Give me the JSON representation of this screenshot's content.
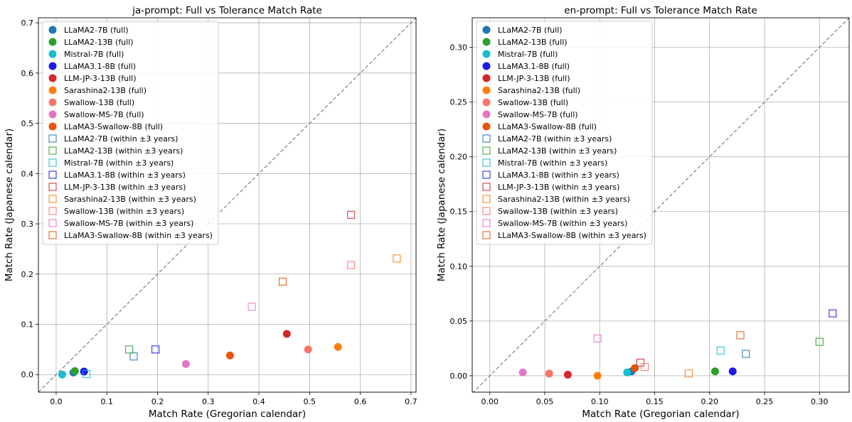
{
  "chart_data": [
    {
      "type": "scatter",
      "title": "ja-prompt: Full vs Tolerance Match Rate",
      "xlabel": "Match Rate (Gregorian calendar)",
      "ylabel": "Match Rate (Japanese calendar)",
      "xlim": [
        -0.035,
        0.71
      ],
      "ylim": [
        -0.035,
        0.71
      ],
      "xticks": [
        "0.0",
        "0.1",
        "0.2",
        "0.3",
        "0.4",
        "0.5",
        "0.6",
        "0.7"
      ],
      "yticks": [
        "0.0",
        "0.1",
        "0.2",
        "0.3",
        "0.4",
        "0.5",
        "0.6",
        "0.7"
      ],
      "grid": true,
      "diagonal": "y = x (dashed)",
      "legend_position": "upper-left",
      "series": [
        {
          "name": "LLaMA2-7B (full)",
          "marker": "circle",
          "color": "#1f77b4",
          "points": [
            [
              0.034,
              0.004
            ]
          ]
        },
        {
          "name": "LLaMA2-13B (full)",
          "marker": "circle",
          "color": "#2ca02c",
          "points": [
            [
              0.037,
              0.007
            ]
          ]
        },
        {
          "name": "Mistral-7B (full)",
          "marker": "circle",
          "color": "#17becf",
          "points": [
            [
              0.012,
              0.0
            ]
          ]
        },
        {
          "name": "LLaMA3.1-8B (full)",
          "marker": "circle",
          "color": "#1a1aeb",
          "points": [
            [
              0.055,
              0.006
            ]
          ]
        },
        {
          "name": "LLM-JP-3-13B (full)",
          "marker": "circle",
          "color": "#d62728",
          "points": [
            [
              0.455,
              0.081
            ]
          ]
        },
        {
          "name": "Sarashina2-13B (full)",
          "marker": "circle",
          "color": "#ff7f0e",
          "points": [
            [
              0.556,
              0.055
            ]
          ]
        },
        {
          "name": "Swallow-13B (full)",
          "marker": "circle",
          "color": "#f8766d",
          "points": [
            [
              0.497,
              0.05
            ]
          ]
        },
        {
          "name": "Swallow-MS-7B (full)",
          "marker": "circle",
          "color": "#e377c2",
          "points": [
            [
              0.256,
              0.021
            ]
          ]
        },
        {
          "name": "LLaMA3-Swallow-8B (full)",
          "marker": "circle",
          "color": "#e6550d",
          "points": [
            [
              0.343,
              0.038
            ]
          ]
        },
        {
          "name": "LLaMA2-7B (within ±3 years)",
          "marker": "square",
          "color": "#1f77b4",
          "points": [
            [
              0.153,
              0.036
            ]
          ]
        },
        {
          "name": "LLaMA2-13B (within ±3 years)",
          "marker": "square",
          "color": "#2ca02c",
          "points": [
            [
              0.144,
              0.05
            ]
          ]
        },
        {
          "name": "Mistral-7B (within ±3 years)",
          "marker": "square",
          "color": "#17becf",
          "points": [
            [
              0.06,
              0.001
            ]
          ]
        },
        {
          "name": "LLaMA3.1-8B (within ±3 years)",
          "marker": "square",
          "color": "#1a1aeb",
          "points": [
            [
              0.196,
              0.05
            ]
          ]
        },
        {
          "name": "LLM-JP-3-13B (within ±3 years)",
          "marker": "square",
          "color": "#d62728",
          "points": [
            [
              0.582,
              0.318
            ]
          ]
        },
        {
          "name": "Sarashina2-13B (within ±3 years)",
          "marker": "square",
          "color": "#ff7f0e",
          "points": [
            [
              0.672,
              0.231
            ]
          ]
        },
        {
          "name": "Swallow-13B (within ±3 years)",
          "marker": "square",
          "color": "#f8766d",
          "points": [
            [
              0.582,
              0.218
            ]
          ]
        },
        {
          "name": "Swallow-MS-7B (within ±3 years)",
          "marker": "square",
          "color": "#e377c2",
          "points": [
            [
              0.386,
              0.135
            ]
          ]
        },
        {
          "name": "LLaMA3-Swallow-8B (within ±3 years)",
          "marker": "square",
          "color": "#e6550d",
          "points": [
            [
              0.447,
              0.185
            ]
          ]
        }
      ]
    },
    {
      "type": "scatter",
      "title": "en-prompt: Full vs Tolerance Match Rate",
      "xlabel": "Match Rate (Gregorian calendar)",
      "ylabel": "Match Rate (Japanese calendar)",
      "xlim": [
        -0.016,
        0.327
      ],
      "ylim": [
        -0.015,
        0.327
      ],
      "xticks": [
        "0.00",
        "0.05",
        "0.10",
        "0.15",
        "0.20",
        "0.25",
        "0.30"
      ],
      "yticks": [
        "0.00",
        "0.05",
        "0.10",
        "0.15",
        "0.20",
        "0.25",
        "0.30"
      ],
      "grid": true,
      "diagonal": "y = x (dashed)",
      "legend_position": "upper-left",
      "series": [
        {
          "name": "LLaMA2-7B (full)",
          "marker": "circle",
          "color": "#1f77b4",
          "points": [
            [
              0.129,
              0.004
            ]
          ]
        },
        {
          "name": "LLaMA2-13B (full)",
          "marker": "circle",
          "color": "#2ca02c",
          "points": [
            [
              0.205,
              0.004
            ]
          ]
        },
        {
          "name": "Mistral-7B (full)",
          "marker": "circle",
          "color": "#17becf",
          "points": [
            [
              0.125,
              0.003
            ]
          ]
        },
        {
          "name": "LLaMA3.1-8B (full)",
          "marker": "circle",
          "color": "#1a1aeb",
          "points": [
            [
              0.221,
              0.004
            ]
          ]
        },
        {
          "name": "LLM-JP-3-13B (full)",
          "marker": "circle",
          "color": "#d62728",
          "points": [
            [
              0.071,
              0.001
            ]
          ]
        },
        {
          "name": "Sarashina2-13B (full)",
          "marker": "circle",
          "color": "#ff7f0e",
          "points": [
            [
              0.098,
              0.0
            ]
          ]
        },
        {
          "name": "Swallow-13B (full)",
          "marker": "circle",
          "color": "#f8766d",
          "points": [
            [
              0.054,
              0.002
            ]
          ]
        },
        {
          "name": "Swallow-MS-7B (full)",
          "marker": "circle",
          "color": "#e377c2",
          "points": [
            [
              0.03,
              0.003
            ]
          ]
        },
        {
          "name": "LLaMA3-Swallow-8B (full)",
          "marker": "circle",
          "color": "#e6550d",
          "points": [
            [
              0.132,
              0.007
            ]
          ]
        },
        {
          "name": "LLaMA2-7B (within ±3 years)",
          "marker": "square",
          "color": "#1f77b4",
          "points": [
            [
              0.233,
              0.02
            ]
          ]
        },
        {
          "name": "LLaMA2-13B (within ±3 years)",
          "marker": "square",
          "color": "#2ca02c",
          "points": [
            [
              0.3,
              0.031
            ]
          ]
        },
        {
          "name": "Mistral-7B (within ±3 years)",
          "marker": "square",
          "color": "#17becf",
          "points": [
            [
              0.21,
              0.023
            ]
          ]
        },
        {
          "name": "LLaMA3.1-8B (within ±3 years)",
          "marker": "square",
          "color": "#1a1aeb",
          "points": [
            [
              0.312,
              0.057
            ]
          ]
        },
        {
          "name": "LLM-JP-3-13B (within ±3 years)",
          "marker": "square",
          "color": "#d62728",
          "points": [
            [
              0.137,
              0.012
            ]
          ]
        },
        {
          "name": "Sarashina2-13B (within ±3 years)",
          "marker": "square",
          "color": "#ff7f0e",
          "points": [
            [
              0.181,
              0.002
            ]
          ]
        },
        {
          "name": "Swallow-13B (within ±3 years)",
          "marker": "square",
          "color": "#f8766d",
          "points": [
            [
              0.141,
              0.008
            ]
          ]
        },
        {
          "name": "Swallow-MS-7B (within ±3 years)",
          "marker": "square",
          "color": "#e377c2",
          "points": [
            [
              0.098,
              0.034
            ]
          ]
        },
        {
          "name": "LLaMA3-Swallow-8B (within ±3 years)",
          "marker": "square",
          "color": "#e6550d",
          "points": [
            [
              0.228,
              0.037
            ]
          ]
        }
      ]
    }
  ]
}
